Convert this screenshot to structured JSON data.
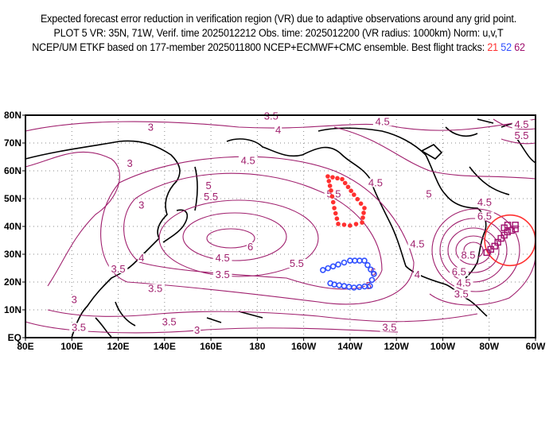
{
  "title": {
    "line1": "Expected forecast error reduction in verification region (VR) due to adaptive observations around any grid point.",
    "line2": "PLOT 5 VR: 35N, 71W, Verif. time 2025012212 Obs. time: 2025012200 (VR radius: 1000km) Norm: u,v,T",
    "line3_prefix": "NCEP/UM ETKF based on 177-member 2025011800 NCEP+ECMWF+CMC ensemble. Best flight tracks:",
    "tracks": [
      {
        "label": "21",
        "color": "#ff3030"
      },
      {
        "label": "52",
        "color": "#3050ff"
      },
      {
        "label": "62",
        "color": "#a0106e"
      }
    ]
  },
  "chart_data": {
    "type": "map-contour",
    "lon_range": [
      80,
      300
    ],
    "lat_range": [
      0,
      80
    ],
    "x_ticks": [
      "80E",
      "100E",
      "120E",
      "140E",
      "160E",
      "180",
      "160W",
      "140W",
      "120W",
      "100W",
      "80W",
      "60W"
    ],
    "y_ticks": [
      "EQ",
      "10N",
      "20N",
      "30N",
      "40N",
      "50N",
      "60N",
      "70N",
      "80N"
    ],
    "contour_color": "#a0206e",
    "verification_region": {
      "lat": 35,
      "lon": 289,
      "radius_km": 1000,
      "color": "#ff3030"
    },
    "contour_labels": [
      {
        "v": "3",
        "lon": 134,
        "lat": 75
      },
      {
        "v": "3.5",
        "lon": 186,
        "lat": 79
      },
      {
        "v": "4",
        "lon": 189,
        "lat": 74
      },
      {
        "v": "4.5",
        "lon": 234,
        "lat": 77
      },
      {
        "v": "4.5",
        "lon": 294,
        "lat": 76
      },
      {
        "v": "5.5",
        "lon": 294,
        "lat": 72
      },
      {
        "v": "3",
        "lon": 125,
        "lat": 62
      },
      {
        "v": "4.5",
        "lon": 176,
        "lat": 63
      },
      {
        "v": "5",
        "lon": 159,
        "lat": 54
      },
      {
        "v": "5.5",
        "lon": 160,
        "lat": 50
      },
      {
        "v": "3",
        "lon": 130,
        "lat": 47
      },
      {
        "v": "4.5",
        "lon": 231,
        "lat": 55
      },
      {
        "v": "5",
        "lon": 254,
        "lat": 51
      },
      {
        "v": "5.5",
        "lon": 213,
        "lat": 51
      },
      {
        "v": "4.5",
        "lon": 278,
        "lat": 48
      },
      {
        "v": "6.5",
        "lon": 278,
        "lat": 43
      },
      {
        "v": "6",
        "lon": 177,
        "lat": 32
      },
      {
        "v": "4",
        "lon": 130,
        "lat": 28
      },
      {
        "v": "4.5",
        "lon": 165,
        "lat": 28
      },
      {
        "v": "5.5",
        "lon": 197,
        "lat": 26
      },
      {
        "v": "6",
        "lon": 230,
        "lat": 23
      },
      {
        "v": "4",
        "lon": 249,
        "lat": 22
      },
      {
        "v": "4.5",
        "lon": 249,
        "lat": 33
      },
      {
        "v": "3.5",
        "lon": 120,
        "lat": 24
      },
      {
        "v": "3.5",
        "lon": 165,
        "lat": 22
      },
      {
        "v": "8.5",
        "lon": 271,
        "lat": 29
      },
      {
        "v": "6.5",
        "lon": 267,
        "lat": 23
      },
      {
        "v": "5",
        "lon": 228,
        "lat": 18
      },
      {
        "v": "4.5",
        "lon": 269,
        "lat": 19
      },
      {
        "v": "3.5",
        "lon": 268,
        "lat": 15
      },
      {
        "v": "3",
        "lon": 101,
        "lat": 13
      },
      {
        "v": "3.5",
        "lon": 136,
        "lat": 17
      },
      {
        "v": "3.5",
        "lon": 142,
        "lat": 5
      },
      {
        "v": "3",
        "lon": 154,
        "lat": 2
      },
      {
        "v": "3.5",
        "lon": 103,
        "lat": 3
      },
      {
        "v": "3.5",
        "lon": 237,
        "lat": 3
      }
    ],
    "flight_tracks": [
      {
        "id": "21",
        "marker": "dot",
        "color": "#ff3030",
        "points": [
          [
            210.4,
            58
          ],
          [
            216.6,
            57
          ],
          [
            221.7,
            51.4
          ],
          [
            226.2,
            46.6
          ],
          [
            225.2,
            41.4
          ],
          [
            220,
            40.3
          ],
          [
            214.9,
            40.9
          ],
          [
            213.2,
            46.6
          ],
          [
            211.8,
            52.9
          ],
          [
            210.4,
            58
          ]
        ]
      },
      {
        "id": "52",
        "marker": "circle",
        "color": "#3050ff",
        "points": [
          [
            208.3,
            24.3
          ],
          [
            214.9,
            26.3
          ],
          [
            220,
            27.7
          ],
          [
            226.2,
            27.7
          ],
          [
            230.3,
            22.9
          ],
          [
            228.6,
            18.6
          ],
          [
            221.7,
            18
          ],
          [
            213.2,
            19.1
          ],
          [
            209.8,
            20
          ]
        ]
      },
      {
        "id": "62",
        "marker": "square",
        "color": "#a0106e",
        "points": [
          [
            279,
            30.6
          ],
          [
            282.4,
            32.9
          ],
          [
            285.1,
            35.7
          ],
          [
            287.9,
            38
          ],
          [
            291.3,
            39.1
          ],
          [
            291.3,
            40.5
          ],
          [
            288,
            40.5
          ],
          [
            285,
            38.5
          ]
        ]
      }
    ]
  }
}
